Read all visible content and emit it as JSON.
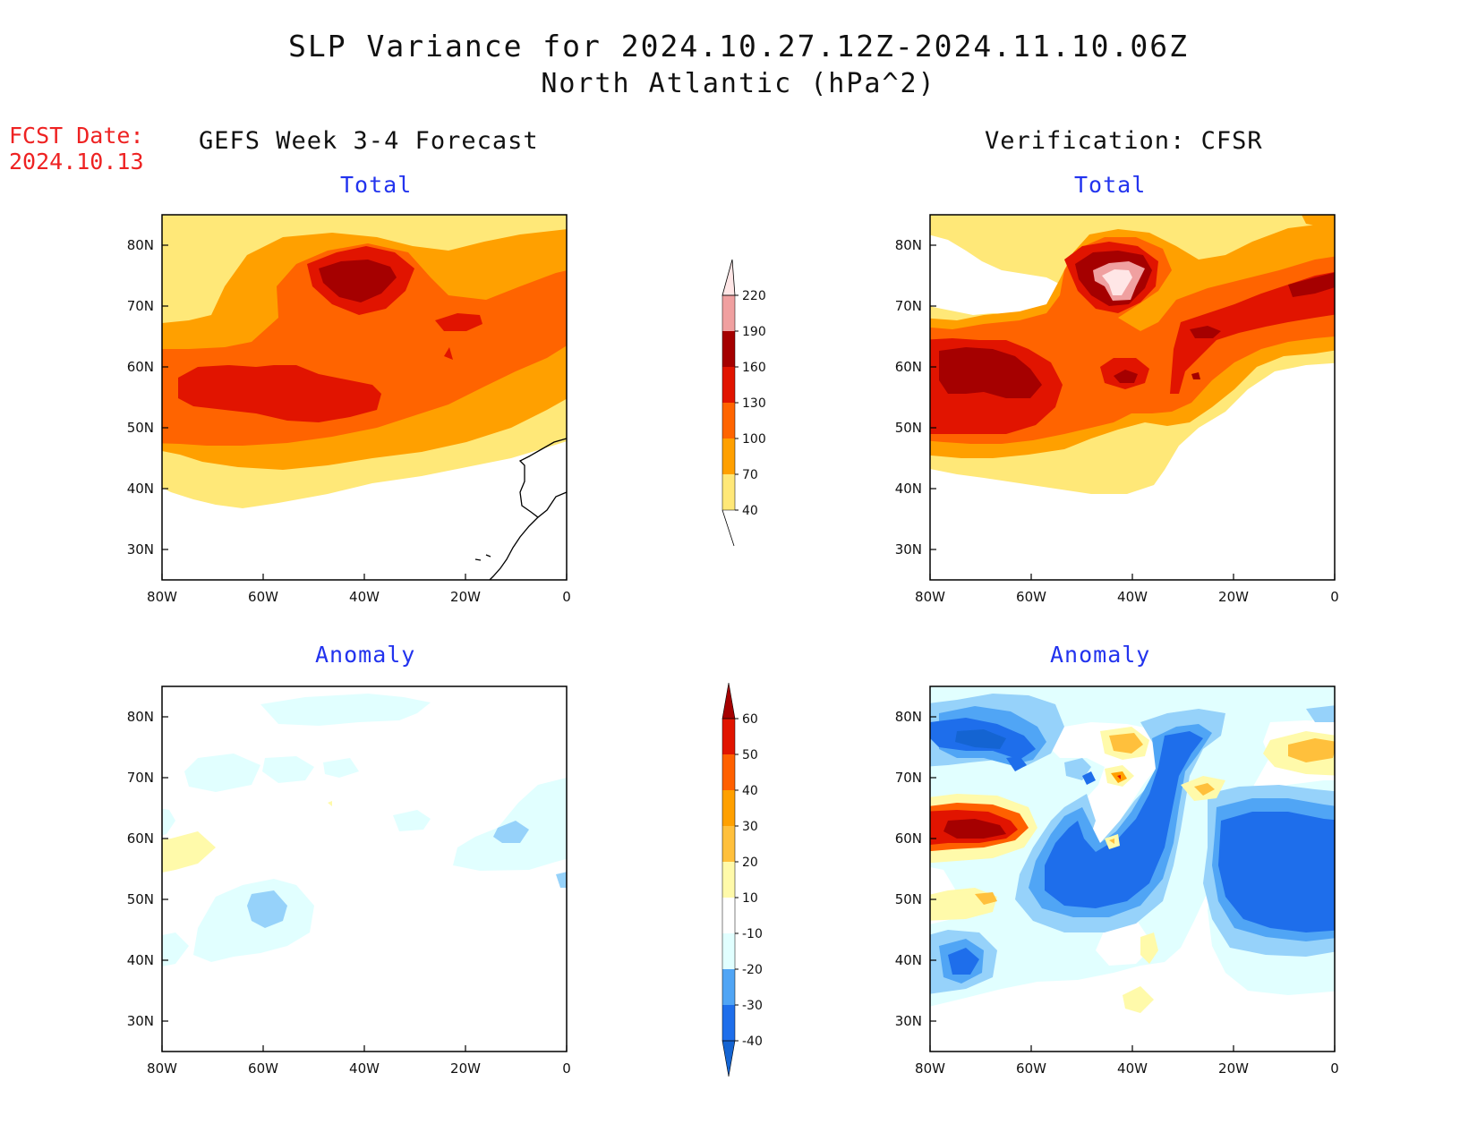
{
  "title_line1": "SLP Variance for 2024.10.27.12Z-2024.11.10.06Z",
  "title_line2": "North Atlantic (hPa^2)",
  "fcst_label": "FCST Date:",
  "fcst_date": "2024.10.13",
  "left_column_title": "GEFS Week 3-4 Forecast",
  "right_column_title": "Verification: CFSR",
  "panels": [
    {
      "id": "gefs-total",
      "subtitle": "Total"
    },
    {
      "id": "cfsr-total",
      "subtitle": "Total"
    },
    {
      "id": "gefs-anomaly",
      "subtitle": "Anomaly"
    },
    {
      "id": "cfsr-anomaly",
      "subtitle": "Anomaly"
    }
  ],
  "lon_ticks": [
    "80W",
    "60W",
    "40W",
    "20W",
    "0"
  ],
  "lat_ticks": [
    "30N",
    "40N",
    "50N",
    "60N",
    "70N",
    "80N"
  ],
  "total_colorbar": {
    "labels": [
      "40",
      "70",
      "100",
      "130",
      "160",
      "190",
      "220"
    ],
    "colors": [
      "#ffe878",
      "#ffa000",
      "#ff6400",
      "#e11400",
      "#a50000",
      "#f0a0a0",
      "#ffe6e6"
    ]
  },
  "anomaly_colorbar": {
    "labels": [
      "-40",
      "-30",
      "-20",
      "-10",
      "10",
      "20",
      "30",
      "40",
      "50",
      "60"
    ],
    "colors": [
      "#1464d2",
      "#1e6eeb",
      "#50a5f5",
      "#96d2fa",
      "#e1ffff",
      "#ffffff",
      "#fffaaa",
      "#ffc03c",
      "#ffa000",
      "#ff6000",
      "#e11400",
      "#a50000"
    ]
  }
}
